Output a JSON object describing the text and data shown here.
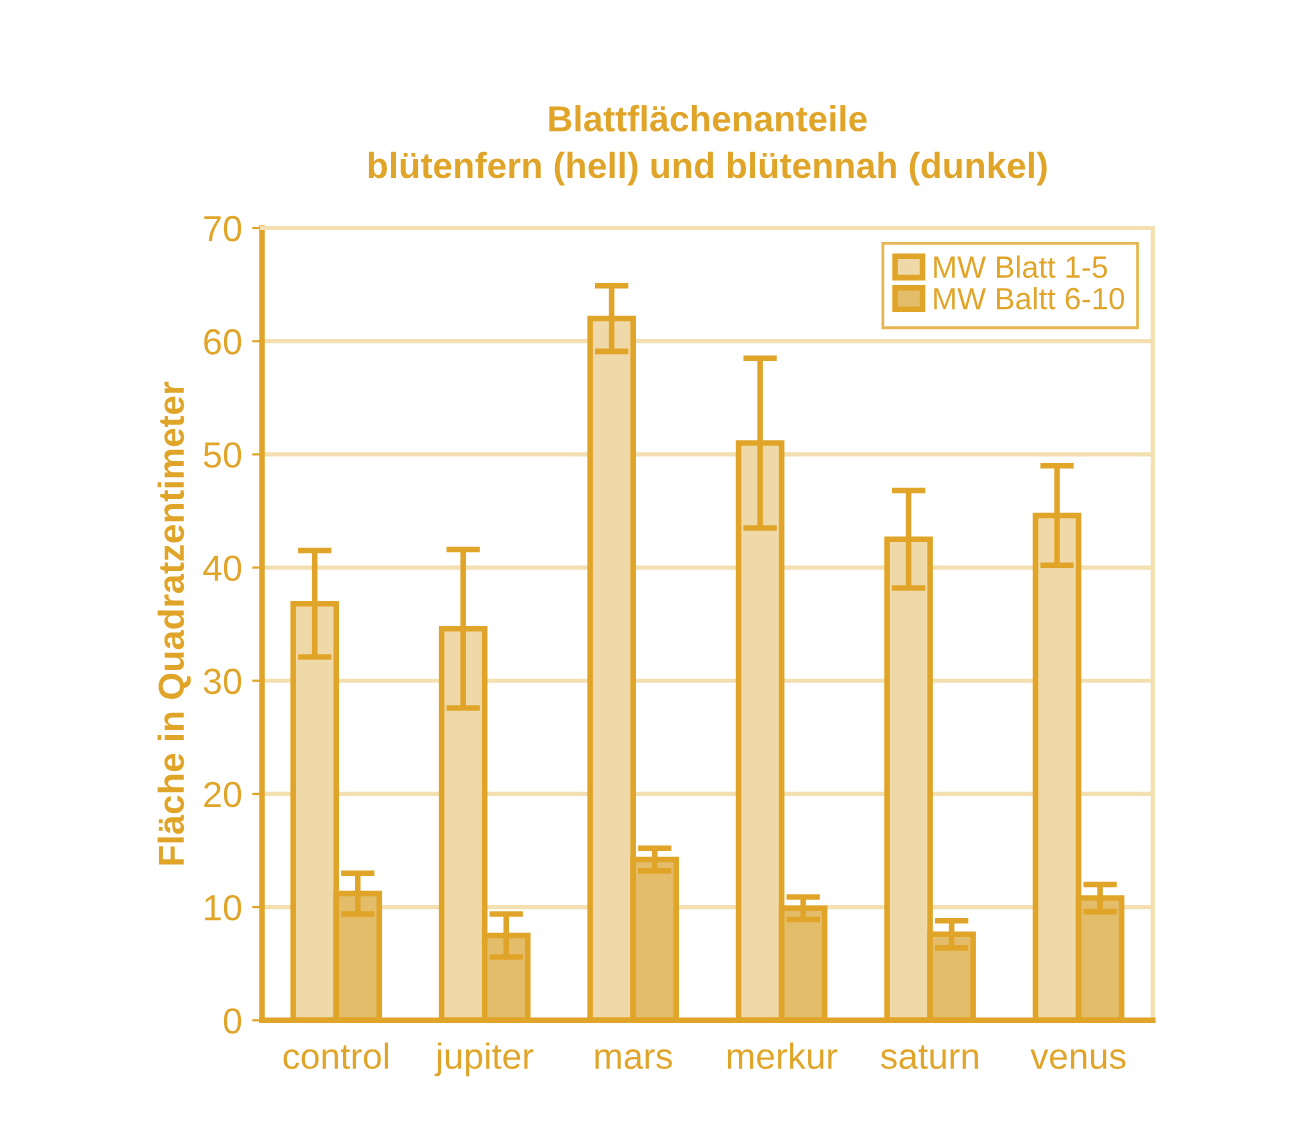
{
  "chart_data": {
    "type": "bar",
    "title": "Blattflächenanteile\nblütenfern (hell) und blütennah (dunkel)",
    "ylabel": "Fläche in Quadratzentimeter",
    "categories": [
      "control",
      "jupiter",
      "mars",
      "merkur",
      "saturn",
      "venus"
    ],
    "series": [
      {
        "name": "MW Blatt 1-5",
        "color": "#f0d9a8",
        "values": [
          36.8,
          34.6,
          62,
          51,
          42.5,
          44.6
        ],
        "errors": [
          4.7,
          7,
          2.9,
          7.5,
          4.3,
          4.4
        ]
      },
      {
        "name": "MW Baltt 6-10",
        "color": "#e3bd6a",
        "values": [
          11.2,
          7.5,
          14.2,
          9.9,
          7.6,
          10.8
        ],
        "errors": [
          1.8,
          1.9,
          1,
          1,
          1.2,
          1.2
        ]
      }
    ],
    "ylim": [
      0,
      70
    ],
    "yticks": [
      0,
      10,
      20,
      30,
      40,
      50,
      60,
      70
    ],
    "grid": "y",
    "legend": "top right"
  }
}
